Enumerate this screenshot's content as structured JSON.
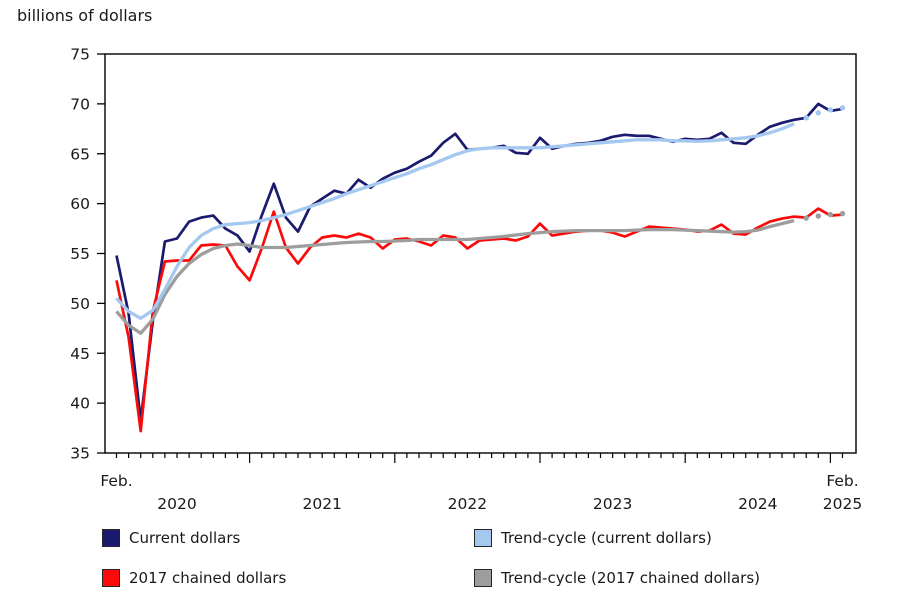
{
  "title": "billions of dollars",
  "y_axis": {
    "ticks": [
      75,
      70,
      65,
      60,
      55,
      50,
      45,
      40,
      35
    ],
    "min": 35,
    "max": 75,
    "step": 5
  },
  "x_axis": {
    "first_point_label": "Feb.",
    "years": [
      {
        "label": "2020",
        "month_index": 5
      },
      {
        "label": "2021",
        "month_index": 17
      },
      {
        "label": "2022",
        "month_index": 29
      },
      {
        "label": "2023",
        "month_index": 41
      },
      {
        "label": "2024",
        "month_index": 53
      }
    ],
    "end_top_label": "Feb.",
    "end_year": {
      "label": "2025",
      "month_index": 60
    }
  },
  "legend": {
    "items": [
      {
        "label": "Current dollars",
        "color": "#1a1a6e"
      },
      {
        "label": "2017 chained dollars",
        "color": "#fa0a0a"
      },
      {
        "label": "Trend-cycle (current dollars)",
        "color": "#a4c8f0"
      },
      {
        "label": "Trend-cycle (2017 chained dollars)",
        "color": "#9d9d9d"
      }
    ]
  },
  "colors": {
    "current": "#1a1a6e",
    "chained": "#fa0a0a",
    "trend_current": "#a4c8f0",
    "trend_chained": "#9d9d9d",
    "axis": "#000000",
    "text": "#1a1a1a"
  },
  "chart_data": {
    "type": "line",
    "title": "billions of dollars",
    "x_start": "2020-02",
    "x_end": "2025-02",
    "frequency": "monthly",
    "ylim": [
      35,
      75
    ],
    "grid": false,
    "legend_position": "bottom",
    "note": "trend-cycle series end with 4 dotted points",
    "series": [
      {
        "id": "current-dollars",
        "name": "Current dollars",
        "color": "#1a1a6e",
        "width": 2.7,
        "dotted_tail": 0,
        "values": [
          54.8,
          49,
          38.3,
          48.2,
          56.2,
          56.5,
          58.2,
          58.6,
          58.8,
          57.5,
          56.8,
          55.2,
          58.8,
          62,
          58.6,
          57.2,
          59.7,
          60.5,
          61.3,
          61,
          62.4,
          61.6,
          62.5,
          63.1,
          63.5,
          64.2,
          64.8,
          66.1,
          67,
          65.4,
          65.5,
          65.6,
          65.8,
          65.1,
          65,
          66.6,
          65.5,
          65.8,
          66,
          66.1,
          66.3,
          66.7,
          66.9,
          66.8,
          66.8,
          66.5,
          66.2,
          66.5,
          66.4,
          66.5,
          67.1,
          66.1,
          66,
          66.9,
          67.7,
          68.1,
          68.4,
          68.6,
          70,
          69.3,
          69.5
        ]
      },
      {
        "id": "chained-2017-dollars",
        "name": "2017 chained dollars",
        "color": "#fa0a0a",
        "width": 2.7,
        "dotted_tail": 0,
        "values": [
          52.3,
          46.6,
          37.2,
          49.2,
          54.2,
          54.3,
          54.3,
          55.8,
          55.9,
          55.8,
          53.7,
          52.3,
          55.5,
          59.2,
          55.6,
          54,
          55.6,
          56.6,
          56.8,
          56.6,
          57,
          56.6,
          55.5,
          56.4,
          56.5,
          56.2,
          55.8,
          56.8,
          56.6,
          55.5,
          56.3,
          56.4,
          56.5,
          56.3,
          56.7,
          58,
          56.8,
          57,
          57.2,
          57.3,
          57.3,
          57.1,
          56.7,
          57.2,
          57.7,
          57.6,
          57.5,
          57.4,
          57.2,
          57.3,
          57.9,
          57,
          56.9,
          57.6,
          58.2,
          58.5,
          58.7,
          58.6,
          59.5,
          58.8,
          58.9
        ]
      },
      {
        "id": "trend-cycle-chained",
        "name": "Trend-cycle (2017 chained dollars)",
        "color": "#9d9d9d",
        "width": 3.3,
        "dotted_tail": 4,
        "values": [
          49.2,
          47.8,
          47,
          48.4,
          50.9,
          52.7,
          54,
          54.9,
          55.5,
          55.8,
          55.95,
          55.8,
          55.6,
          55.6,
          55.6,
          55.7,
          55.8,
          55.9,
          56,
          56.1,
          56.15,
          56.2,
          56.2,
          56.25,
          56.3,
          56.4,
          56.4,
          56.4,
          56.4,
          56.4,
          56.5,
          56.6,
          56.7,
          56.85,
          57,
          57.1,
          57.2,
          57.25,
          57.3,
          57.3,
          57.3,
          57.3,
          57.3,
          57.35,
          57.4,
          57.4,
          57.4,
          57.35,
          57.3,
          57.25,
          57.2,
          57.15,
          57.2,
          57.35,
          57.7,
          58,
          58.3,
          58.55,
          58.75,
          58.9,
          59
        ]
      },
      {
        "id": "trend-cycle-current",
        "name": "Trend-cycle (current dollars)",
        "color": "#a4c8f0",
        "width": 3.3,
        "dotted_tail": 4,
        "values": [
          50.5,
          49.2,
          48.5,
          49.3,
          51.4,
          53.7,
          55.6,
          56.8,
          57.5,
          57.9,
          58,
          58.1,
          58.3,
          58.6,
          58.9,
          59.3,
          59.7,
          60.1,
          60.5,
          61,
          61.4,
          61.8,
          62.2,
          62.6,
          63,
          63.5,
          63.9,
          64.4,
          64.9,
          65.3,
          65.5,
          65.6,
          65.6,
          65.6,
          65.6,
          65.6,
          65.7,
          65.8,
          65.9,
          66,
          66.1,
          66.2,
          66.3,
          66.4,
          66.4,
          66.4,
          66.3,
          66.3,
          66.25,
          66.3,
          66.4,
          66.5,
          66.6,
          66.8,
          67.1,
          67.5,
          68,
          68.6,
          69.1,
          69.4,
          69.6
        ]
      }
    ]
  }
}
